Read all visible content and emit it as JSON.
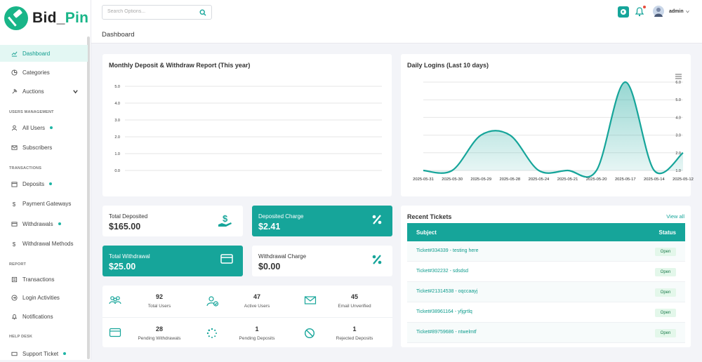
{
  "brand": {
    "part1": "Bid",
    "part2": "Pin"
  },
  "sidebar": {
    "items": [
      {
        "label": "Dashboard",
        "icon": "dashboard-icon"
      },
      {
        "label": "Categories",
        "icon": "categories-icon"
      },
      {
        "label": "Auctions",
        "icon": "auction-icon"
      },
      {
        "label": "All Users",
        "icon": "user-icon"
      },
      {
        "label": "Subscribers",
        "icon": "mail-icon"
      },
      {
        "label": "Deposits",
        "icon": "wallet-icon"
      },
      {
        "label": "Payment Gateways",
        "icon": "dollar-icon"
      },
      {
        "label": "Withdrawals",
        "icon": "card-icon"
      },
      {
        "label": "Withdrawal Methods",
        "icon": "dollar-icon"
      },
      {
        "label": "Transactions",
        "icon": "transactions-icon"
      },
      {
        "label": "Login Activities",
        "icon": "login-icon"
      },
      {
        "label": "Notifications",
        "icon": "bell-icon"
      },
      {
        "label": "Support Ticket",
        "icon": "ticket-icon"
      }
    ],
    "sections": {
      "users": "USERS MANAGEMENT",
      "transactions": "TRANSACTIONS",
      "report": "REPORT",
      "help": "HELP DESK"
    }
  },
  "header": {
    "search_placeholder": "Search Options...",
    "admin": "admin",
    "page_title": "Dashboard"
  },
  "deposit_chart": {
    "title": "Monthly Deposit & Withdraw Report (This year)",
    "chart_data": {
      "type": "line",
      "title": "Monthly Deposit & Withdraw Report (This year)",
      "ylim": [
        0,
        5
      ],
      "yticks": [
        "5.0",
        "4.0",
        "3.0",
        "2.0",
        "1.0",
        "0.0"
      ],
      "series": []
    }
  },
  "logins_chart": {
    "title": "Daily Logins (Last 10 days)",
    "chart_data": {
      "type": "area",
      "title": "Daily Logins (Last 10 days)",
      "x": [
        "2025-05-31",
        "2025-05-30",
        "2025-05-29",
        "2025-05-28",
        "2025-05-24",
        "2025-05-21",
        "2025-05-20",
        "2025-05-17",
        "2025-05-14",
        "2025-05-12"
      ],
      "values": [
        1,
        1,
        3,
        3,
        1,
        1,
        1,
        6,
        1,
        2
      ],
      "yticks": [
        "6.0",
        "5.0",
        "4.0",
        "3.0",
        "2.0",
        "1.0"
      ],
      "ylim": [
        1,
        6
      ],
      "color": "#16a59a"
    }
  },
  "stats": {
    "total_deposited": {
      "label": "Total Deposited",
      "value": "$165.00"
    },
    "deposited_charge": {
      "label": "Deposited Charge",
      "value": "$2.41"
    },
    "total_withdrawal": {
      "label": "Total Withdrawal",
      "value": "$25.00"
    },
    "withdrawal_charge": {
      "label": "Withdrawal Charge",
      "value": "$0.00"
    }
  },
  "mini_stats": [
    {
      "value": "92",
      "label": "Total Users"
    },
    {
      "value": "47",
      "label": "Active Users"
    },
    {
      "value": "45",
      "label": "Email Unverified"
    },
    {
      "value": "28",
      "label": "Pending Withdrawals"
    },
    {
      "value": "1",
      "label": "Pending Deposits"
    },
    {
      "value": "1",
      "label": "Rejected Deposits"
    }
  ],
  "tickets": {
    "title": "Recent Tickets",
    "view_all": "View all",
    "col_subject": "Subject",
    "col_status": "Status",
    "rows": [
      {
        "subject": "Ticket#334339 - testing here",
        "status": "Open"
      },
      {
        "subject": "Ticket#302232 - sdsdsd",
        "status": "Open"
      },
      {
        "subject": "Ticket#21314538 - oqccaayj",
        "status": "Open"
      },
      {
        "subject": "Ticket#38961164 - yfjgrtlq",
        "status": "Open"
      },
      {
        "subject": "Ticket#89759686 - ntwelmtf",
        "status": "Open"
      }
    ]
  },
  "colors": {
    "accent": "#16a59a",
    "brand_green": "#19b588",
    "badge_bg": "#e3f7ea"
  }
}
